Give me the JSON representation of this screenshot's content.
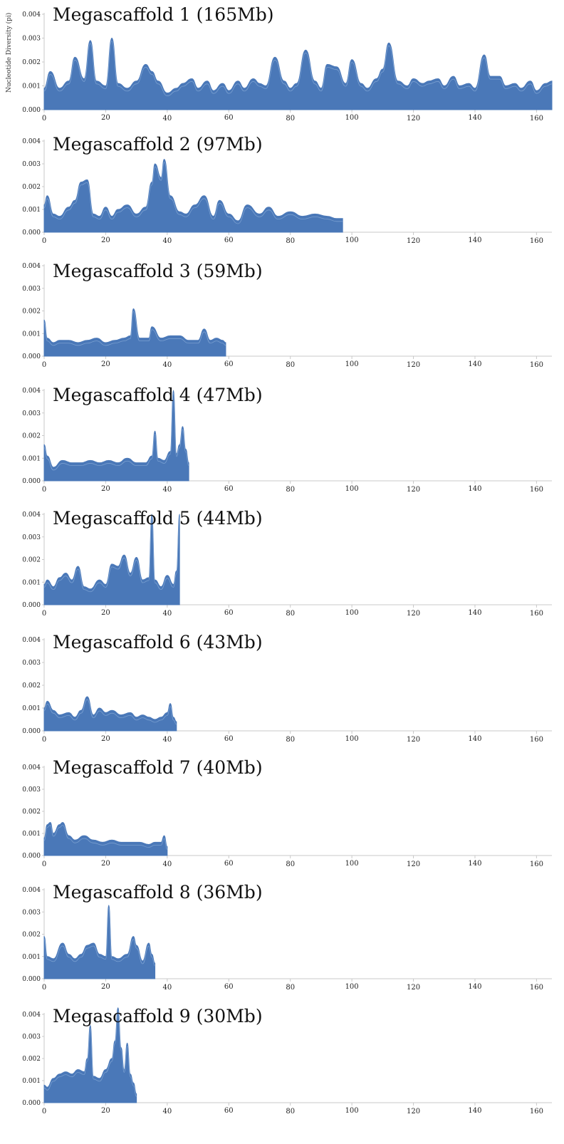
{
  "chart_data": [
    {
      "type": "area",
      "title": "Megascaffold 1 (165Mb)",
      "ylabel": "Nucleotide Diversity (pi)",
      "xlabel": "",
      "xlim": [
        0,
        165
      ],
      "ylim": [
        0,
        0.004
      ],
      "x_ticks": [
        "0",
        "20",
        "40",
        "60",
        "80",
        "100",
        "120",
        "140",
        "160"
      ],
      "y_ticks": [
        "0.000",
        "0.001",
        "0.002",
        "0.003",
        "0.004"
      ],
      "x": [
        0,
        2,
        5,
        8,
        10,
        13,
        15,
        17,
        20,
        22,
        24,
        27,
        30,
        33,
        35,
        37,
        40,
        43,
        45,
        48,
        50,
        53,
        55,
        58,
        60,
        63,
        65,
        68,
        70,
        72,
        75,
        78,
        80,
        82,
        85,
        88,
        90,
        92,
        95,
        98,
        100,
        103,
        105,
        108,
        110,
        112,
        115,
        118,
        120,
        123,
        125,
        128,
        130,
        133,
        135,
        138,
        140,
        143,
        145,
        148,
        150,
        153,
        155,
        158,
        160,
        163,
        165
      ],
      "values": [
        0.0009,
        0.0016,
        0.0009,
        0.0012,
        0.0022,
        0.0013,
        0.0029,
        0.0012,
        0.001,
        0.003,
        0.0011,
        0.0009,
        0.0012,
        0.0019,
        0.0016,
        0.0012,
        0.0007,
        0.0009,
        0.0011,
        0.0013,
        0.0009,
        0.0012,
        0.0008,
        0.0011,
        0.0008,
        0.0012,
        0.0009,
        0.0013,
        0.0011,
        0.001,
        0.0022,
        0.0012,
        0.0009,
        0.0011,
        0.0025,
        0.0012,
        0.0009,
        0.0019,
        0.0018,
        0.0011,
        0.0021,
        0.0011,
        0.0009,
        0.0013,
        0.0017,
        0.0028,
        0.0012,
        0.001,
        0.0013,
        0.0011,
        0.0012,
        0.0013,
        0.001,
        0.0014,
        0.001,
        0.0011,
        0.0009,
        0.0023,
        0.0014,
        0.0014,
        0.001,
        0.0011,
        0.0009,
        0.0012,
        0.0008,
        0.0011,
        0.0012
      ]
    },
    {
      "type": "area",
      "title": "Megascaffold 2 (97Mb)",
      "ylabel": "",
      "xlabel": "",
      "xlim": [
        0,
        165
      ],
      "ylim": [
        0,
        0.004
      ],
      "x_ticks": [
        "0",
        "20",
        "40",
        "60",
        "80",
        "100",
        "120",
        "140",
        "160"
      ],
      "y_ticks": [
        "0.000",
        "0.001",
        "0.002",
        "0.003",
        "0.004"
      ],
      "x": [
        0,
        1,
        3,
        5,
        8,
        10,
        12,
        14,
        16,
        18,
        20,
        22,
        24,
        27,
        30,
        33,
        35,
        36,
        38,
        39,
        41,
        44,
        46,
        49,
        52,
        55,
        57,
        60,
        63,
        66,
        70,
        73,
        76,
        80,
        84,
        88,
        92,
        95,
        97
      ],
      "values": [
        0.0012,
        0.0016,
        0.0008,
        0.0007,
        0.0011,
        0.0014,
        0.0022,
        0.0023,
        0.0008,
        0.0007,
        0.0011,
        0.0007,
        0.001,
        0.0012,
        0.0008,
        0.0011,
        0.0022,
        0.003,
        0.0024,
        0.0032,
        0.0016,
        0.0009,
        0.0008,
        0.0012,
        0.0016,
        0.0007,
        0.0014,
        0.0008,
        0.0005,
        0.0012,
        0.0008,
        0.0011,
        0.0007,
        0.0009,
        0.0007,
        0.0008,
        0.0007,
        0.0006,
        0.0006
      ]
    },
    {
      "type": "area",
      "title": "Megascaffold 3 (59Mb)",
      "ylabel": "",
      "xlabel": "",
      "xlim": [
        0,
        165
      ],
      "ylim": [
        0,
        0.004
      ],
      "x_ticks": [
        "0",
        "20",
        "40",
        "60",
        "80",
        "100",
        "120",
        "140",
        "160"
      ],
      "y_ticks": [
        "0.000",
        "0.001",
        "0.002",
        "0.003",
        "0.004"
      ],
      "x": [
        0,
        1,
        3,
        5,
        8,
        11,
        14,
        17,
        20,
        23,
        26,
        28,
        29,
        31,
        34,
        35,
        38,
        41,
        44,
        47,
        50,
        52,
        54,
        56,
        58,
        59
      ],
      "values": [
        0.0016,
        0.0008,
        0.0006,
        0.0007,
        0.0007,
        0.0006,
        0.0007,
        0.0008,
        0.0006,
        0.0007,
        0.0008,
        0.0009,
        0.0021,
        0.0008,
        0.0008,
        0.0013,
        0.0008,
        0.0009,
        0.0009,
        0.0007,
        0.0007,
        0.0012,
        0.0007,
        0.0008,
        0.0007,
        0.0006
      ]
    },
    {
      "type": "area",
      "title": "Megascaffold 4 (47Mb)",
      "ylabel": "",
      "xlabel": "",
      "xlim": [
        0,
        165
      ],
      "ylim": [
        0,
        0.004
      ],
      "x_ticks": [
        "0",
        "20",
        "40",
        "60",
        "80",
        "100",
        "120",
        "140",
        "160"
      ],
      "y_ticks": [
        "0.000",
        "0.001",
        "0.002",
        "0.003",
        "0.004"
      ],
      "x": [
        0,
        1,
        3,
        6,
        9,
        12,
        15,
        18,
        21,
        24,
        27,
        30,
        33,
        35,
        36,
        37,
        39,
        41,
        42,
        43,
        44,
        45,
        46,
        47
      ],
      "values": [
        0.0016,
        0.0011,
        0.0006,
        0.0009,
        0.0008,
        0.0008,
        0.0009,
        0.0008,
        0.0009,
        0.0008,
        0.001,
        0.0008,
        0.0008,
        0.0011,
        0.0022,
        0.001,
        0.0009,
        0.0013,
        0.004,
        0.0012,
        0.0016,
        0.0024,
        0.0014,
        0.0008
      ]
    },
    {
      "type": "area",
      "title": "Megascaffold 5 (44Mb)",
      "ylabel": "",
      "xlabel": "",
      "xlim": [
        0,
        165
      ],
      "ylim": [
        0,
        0.004
      ],
      "x_ticks": [
        "0",
        "20",
        "40",
        "60",
        "80",
        "100",
        "120",
        "140",
        "160"
      ],
      "y_ticks": [
        "0.000",
        "0.001",
        "0.002",
        "0.003",
        "0.004"
      ],
      "x": [
        0,
        1,
        3,
        5,
        7,
        9,
        11,
        13,
        15,
        18,
        20,
        22,
        24,
        26,
        28,
        30,
        32,
        34,
        35,
        36,
        38,
        40,
        42,
        43,
        44
      ],
      "values": [
        0.0009,
        0.0011,
        0.0008,
        0.0012,
        0.0014,
        0.0011,
        0.0017,
        0.0008,
        0.0007,
        0.0011,
        0.0009,
        0.0018,
        0.0017,
        0.0022,
        0.0014,
        0.0021,
        0.0011,
        0.0012,
        0.004,
        0.0011,
        0.0008,
        0.0013,
        0.0009,
        0.0015,
        0.004
      ]
    },
    {
      "type": "area",
      "title": "Megascaffold 6 (43Mb)",
      "ylabel": "",
      "xlabel": "",
      "xlim": [
        0,
        165
      ],
      "ylim": [
        0,
        0.004
      ],
      "x_ticks": [
        "0",
        "20",
        "40",
        "60",
        "80",
        "100",
        "120",
        "140",
        "160"
      ],
      "y_ticks": [
        "0.000",
        "0.001",
        "0.002",
        "0.003",
        "0.004"
      ],
      "x": [
        0,
        1,
        3,
        5,
        8,
        10,
        12,
        14,
        16,
        18,
        20,
        22,
        25,
        28,
        30,
        32,
        34,
        36,
        38,
        40,
        41,
        42,
        43
      ],
      "values": [
        0.001,
        0.0013,
        0.0009,
        0.0007,
        0.0008,
        0.0006,
        0.0009,
        0.0015,
        0.0007,
        0.001,
        0.0008,
        0.0009,
        0.0007,
        0.0008,
        0.0006,
        0.0007,
        0.0006,
        0.0005,
        0.0006,
        0.0008,
        0.0012,
        0.0006,
        0.0004
      ]
    },
    {
      "type": "area",
      "title": "Megascaffold 7 (40Mb)",
      "ylabel": "",
      "xlabel": "",
      "xlim": [
        0,
        165
      ],
      "ylim": [
        0,
        0.004
      ],
      "x_ticks": [
        "0",
        "20",
        "40",
        "60",
        "80",
        "100",
        "120",
        "140",
        "160"
      ],
      "y_ticks": [
        "0.000",
        "0.001",
        "0.002",
        "0.003",
        "0.004"
      ],
      "x": [
        0,
        1,
        2,
        3,
        5,
        6,
        8,
        10,
        13,
        16,
        19,
        22,
        25,
        28,
        31,
        34,
        36,
        38,
        39,
        40
      ],
      "values": [
        0.0008,
        0.0014,
        0.0015,
        0.001,
        0.0014,
        0.0015,
        0.0009,
        0.0007,
        0.0009,
        0.0007,
        0.0006,
        0.0007,
        0.0006,
        0.0006,
        0.0006,
        0.0005,
        0.0006,
        0.0006,
        0.0009,
        0.0004
      ]
    },
    {
      "type": "area",
      "title": "Megascaffold 8 (36Mb)",
      "ylabel": "",
      "xlabel": "",
      "xlim": [
        0,
        165
      ],
      "ylim": [
        0,
        0.004
      ],
      "x_ticks": [
        "0",
        "20",
        "40",
        "60",
        "80",
        "100",
        "120",
        "140",
        "160"
      ],
      "y_ticks": [
        "0.000",
        "0.001",
        "0.002",
        "0.003",
        "0.004"
      ],
      "x": [
        0,
        1,
        3,
        6,
        8,
        10,
        12,
        14,
        16,
        18,
        20,
        21,
        22,
        24,
        27,
        29,
        30,
        32,
        34,
        35,
        36
      ],
      "values": [
        0.0019,
        0.001,
        0.0009,
        0.0016,
        0.0011,
        0.0009,
        0.0011,
        0.0015,
        0.0016,
        0.0011,
        0.001,
        0.0033,
        0.001,
        0.0009,
        0.0011,
        0.0019,
        0.0015,
        0.0008,
        0.0016,
        0.0011,
        0.0007
      ]
    },
    {
      "type": "area",
      "title": "Megascaffold 9 (30Mb)",
      "ylabel": "",
      "xlabel": "",
      "xlim": [
        0,
        165
      ],
      "ylim": [
        0,
        0.0045
      ],
      "x_ticks": [
        "0",
        "20",
        "40",
        "60",
        "80",
        "100",
        "120",
        "140",
        "160"
      ],
      "y_ticks": [
        "0.000",
        "0.001",
        "0.002",
        "0.003",
        "0.004"
      ],
      "x": [
        0,
        1,
        3,
        5,
        7,
        9,
        11,
        13,
        14,
        15,
        16,
        18,
        20,
        22,
        23,
        24,
        25,
        26,
        27,
        28,
        29,
        30
      ],
      "values": [
        0.0008,
        0.0007,
        0.0011,
        0.0013,
        0.0014,
        0.0013,
        0.0015,
        0.0014,
        0.002,
        0.0035,
        0.0012,
        0.0011,
        0.0015,
        0.002,
        0.0028,
        0.0043,
        0.0025,
        0.0015,
        0.0027,
        0.0013,
        0.0009,
        0.0004
      ]
    }
  ],
  "colors": {
    "fill": "#4a78b8",
    "trace": "#8fb0dc",
    "axis": "#c8c8c8"
  }
}
